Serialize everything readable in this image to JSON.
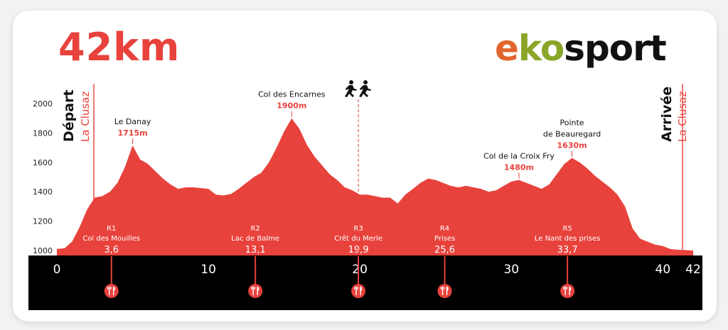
{
  "header": {
    "distance_title": "42km",
    "brand": {
      "part1": "e",
      "part2": "ko",
      "part3": "sport"
    }
  },
  "start": {
    "label": "Départ",
    "place": "La Clusaz"
  },
  "finish": {
    "label": "Arrivée",
    "place": "La Clusaz"
  },
  "colors": {
    "accent": "#e8423c",
    "axis_band": "#000000",
    "background": "#ffffff"
  },
  "chart_data": {
    "type": "area",
    "title": "42km",
    "xlabel": "",
    "ylabel": "",
    "xlim": [
      0,
      42
    ],
    "ylim": [
      1000,
      2000
    ],
    "x_ticks": [
      0,
      10,
      20,
      30,
      40,
      42
    ],
    "y_ticks": [
      1000,
      1200,
      1400,
      1600,
      1800,
      2000
    ],
    "grid": false,
    "profile": {
      "x": [
        0,
        0.5,
        1,
        1.5,
        2,
        2.5,
        3,
        3.5,
        4,
        4.5,
        5,
        5.5,
        6,
        6.5,
        7,
        7.5,
        8,
        8.5,
        9,
        9.5,
        10,
        10.5,
        11,
        11.5,
        12,
        12.5,
        13,
        13.5,
        14,
        14.5,
        15,
        15.5,
        16,
        16.5,
        17,
        17.5,
        18,
        18.5,
        19,
        19.5,
        20,
        20.5,
        21,
        21.5,
        22,
        22.5,
        23,
        23.5,
        24,
        24.5,
        25,
        25.5,
        26,
        26.5,
        27,
        27.5,
        28,
        28.5,
        29,
        29.5,
        30,
        30.5,
        31,
        31.5,
        32,
        32.5,
        33,
        33.5,
        34,
        34.5,
        35,
        35.5,
        36,
        36.5,
        37,
        37.5,
        38,
        38.5,
        39,
        39.5,
        40,
        40.5,
        41,
        41.5,
        42
      ],
      "y": [
        1010,
        1015,
        1060,
        1160,
        1280,
        1360,
        1370,
        1400,
        1460,
        1570,
        1715,
        1620,
        1590,
        1540,
        1490,
        1450,
        1420,
        1430,
        1430,
        1425,
        1420,
        1380,
        1375,
        1385,
        1420,
        1460,
        1500,
        1530,
        1600,
        1700,
        1810,
        1900,
        1830,
        1720,
        1640,
        1580,
        1520,
        1480,
        1430,
        1410,
        1380,
        1380,
        1370,
        1360,
        1360,
        1320,
        1380,
        1420,
        1460,
        1490,
        1480,
        1460,
        1440,
        1430,
        1440,
        1430,
        1420,
        1400,
        1410,
        1440,
        1470,
        1480,
        1460,
        1440,
        1420,
        1450,
        1520,
        1590,
        1630,
        1600,
        1560,
        1510,
        1470,
        1430,
        1380,
        1300,
        1150,
        1080,
        1060,
        1040,
        1030,
        1010,
        1005,
        1003,
        1000
      ]
    },
    "peaks": [
      {
        "name": "Le Danay",
        "alt": "1715m",
        "km": 5.0,
        "elev": 1715
      },
      {
        "name": "Col des Encarnes",
        "alt": "1900m",
        "km": 15.5,
        "elev": 1900
      },
      {
        "name": "Col de la Croix Fry",
        "alt": "1480m",
        "km": 30.5,
        "elev": 1480
      },
      {
        "name": "Pointe de Beauregard",
        "alt": "1630m",
        "km": 34.0,
        "elev": 1630
      }
    ],
    "refreshments": [
      {
        "code": "R1",
        "name": "Col des Mouilles",
        "km_label": "3,6",
        "km": 3.6
      },
      {
        "code": "R2",
        "name": "Lac de Balme",
        "km_label": "13,1",
        "km": 13.1
      },
      {
        "code": "R3",
        "name": "Crêt du Merle",
        "km_label": "19,9",
        "km": 19.9
      },
      {
        "code": "R4",
        "name": "Prises",
        "km_label": "25,6",
        "km": 25.6
      },
      {
        "code": "R5",
        "name": "Le Nant des prises",
        "km_label": "33,7",
        "km": 33.7
      }
    ],
    "relay_point_km": 19.9
  }
}
